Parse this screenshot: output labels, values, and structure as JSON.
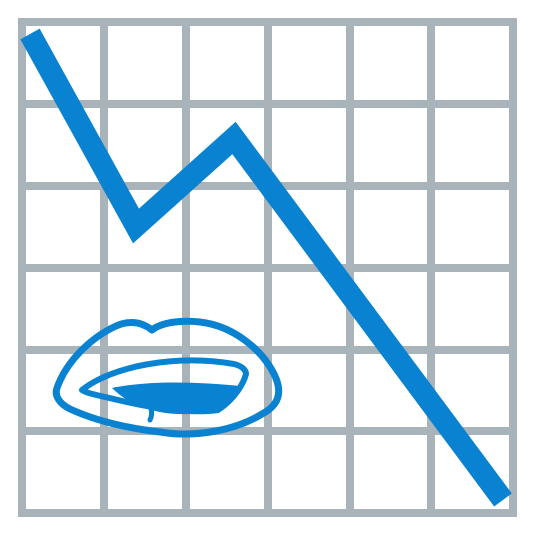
{
  "icon": {
    "name": "declining-chart-with-bitten-lip-icon",
    "description_words": "",
    "colors": {
      "grid": "#A9B4BA",
      "accent": "#0A82D2",
      "background": "#FFFFFF"
    }
  }
}
